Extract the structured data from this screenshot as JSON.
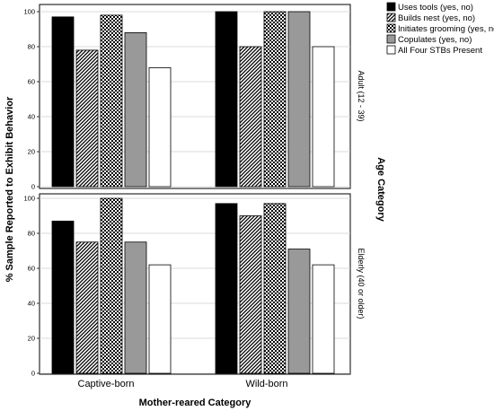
{
  "chart_data": {
    "type": "bar",
    "ylabel": "% Sample Reported to Exhibit Behavior",
    "xlabel": "Mother-reared Category",
    "facet_label": "Age Category",
    "ylim": [
      0,
      100
    ],
    "yticks": [
      "0",
      "20",
      "40",
      "60",
      "80",
      "100"
    ],
    "categories": [
      "Captive-born",
      "Wild-born"
    ],
    "legend_position": "top-right",
    "series_style": [
      {
        "fill": "#000000",
        "pattern": "solid"
      },
      {
        "fill": "#ffffff",
        "pattern": "diagonal-hatch"
      },
      {
        "fill": "#ffffff",
        "pattern": "checker"
      },
      {
        "fill": "#999999",
        "pattern": "solid"
      },
      {
        "fill": "#ffffff",
        "pattern": "solid"
      }
    ],
    "panels": [
      {
        "label": "Adult (12 - 39)",
        "series": [
          {
            "name": "Uses tools (yes, no)",
            "values": [
              97,
              100
            ]
          },
          {
            "name": "Builds nest (yes, no)",
            "values": [
              78,
              80
            ]
          },
          {
            "name": "Initiates grooming (yes, no)",
            "values": [
              98,
              100
            ]
          },
          {
            "name": "Copulates (yes, no)",
            "values": [
              88,
              100
            ]
          },
          {
            "name": "All Four STBs Present",
            "values": [
              68,
              80
            ]
          }
        ]
      },
      {
        "label": "Elderly (40 or older)",
        "series": [
          {
            "name": "Uses tools (yes, no)",
            "values": [
              87,
              97
            ]
          },
          {
            "name": "Builds nest (yes, no)",
            "values": [
              75,
              90
            ]
          },
          {
            "name": "Initiates grooming (yes, no)",
            "values": [
              100,
              97
            ]
          },
          {
            "name": "Copulates (yes, no)",
            "values": [
              75,
              71
            ]
          },
          {
            "name": "All Four STBs Present",
            "values": [
              62,
              62
            ]
          }
        ]
      }
    ]
  }
}
